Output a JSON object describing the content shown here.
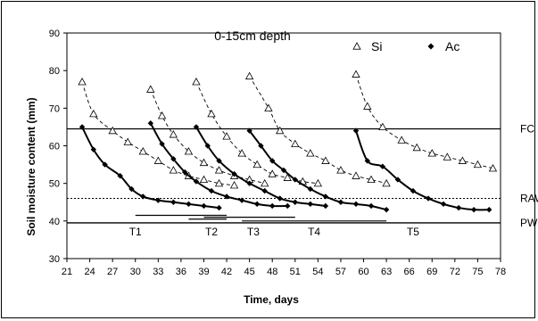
{
  "chart_data": {
    "type": "scatter",
    "title": "0-15cm depth",
    "xlabel": "Time, days",
    "ylabel": "Soil moisture content (mm)",
    "xlim": [
      21,
      78
    ],
    "ylim": [
      30,
      90
    ],
    "xticks": [
      21,
      24,
      27,
      30,
      33,
      36,
      39,
      42,
      45,
      48,
      51,
      54,
      57,
      60,
      63,
      66,
      69,
      72,
      75,
      78
    ],
    "yticks": [
      30,
      40,
      50,
      60,
      70,
      80,
      90
    ],
    "grid": false,
    "legend_position": "top-right",
    "legend": [
      {
        "name": "Si",
        "marker": "open-triangle"
      },
      {
        "name": "Ac",
        "marker": "filled-diamond"
      }
    ],
    "reference_lines": [
      {
        "label": "FC",
        "y": 64.5,
        "style": "solid"
      },
      {
        "label": "RAW",
        "y": 46,
        "style": "dotted"
      },
      {
        "label": "PWP",
        "y": 39.5,
        "style": "solid"
      }
    ],
    "irrigation_periods": [
      {
        "label": "T1",
        "label_x": 30,
        "x": [
          30,
          42
        ],
        "y": 41.5
      },
      {
        "label": "T2",
        "label_x": 40,
        "x": [
          37,
          42
        ],
        "y": 40.5
      },
      {
        "label": "T3",
        "label_x": 45.5,
        "x": [
          39,
          51
        ],
        "y": 41
      },
      {
        "label": "T4",
        "label_x": 53.5,
        "x": [
          44,
          57
        ],
        "y": 40
      },
      {
        "label": "T5",
        "label_x": 66.5,
        "x": [
          57,
          63
        ],
        "y": 40
      }
    ],
    "series": [
      {
        "name": "Si",
        "marker": "open-triangle",
        "line": "dashed",
        "segments": [
          [
            [
              23,
              77
            ],
            [
              24.5,
              68.5
            ],
            [
              27,
              64
            ],
            [
              29,
              61
            ],
            [
              31,
              58.5
            ],
            [
              33,
              56
            ],
            [
              35,
              53.5
            ],
            [
              37,
              52
            ],
            [
              39,
              51
            ],
            [
              41,
              50
            ],
            [
              43,
              49.5
            ]
          ],
          [
            [
              32,
              75
            ],
            [
              33.5,
              68
            ],
            [
              35,
              63
            ],
            [
              37,
              58.5
            ],
            [
              39,
              55.5
            ],
            [
              41,
              53.5
            ],
            [
              43,
              52
            ],
            [
              45,
              51
            ],
            [
              47,
              50
            ]
          ],
          [
            [
              38,
              77
            ],
            [
              40,
              68.5
            ],
            [
              42,
              62.5
            ],
            [
              44,
              58
            ],
            [
              46,
              55
            ],
            [
              48,
              52.5
            ],
            [
              50,
              51.5
            ],
            [
              52,
              50.5
            ],
            [
              54,
              50
            ]
          ],
          [
            [
              45,
              78.5
            ],
            [
              47.5,
              70
            ],
            [
              49,
              64
            ],
            [
              51,
              60.5
            ],
            [
              53,
              58
            ],
            [
              55,
              56
            ],
            [
              57,
              53.5
            ],
            [
              59,
              52
            ],
            [
              61,
              51
            ],
            [
              63,
              50
            ]
          ],
          [
            [
              59,
              79
            ],
            [
              60.5,
              70.5
            ],
            [
              62.5,
              65
            ],
            [
              65,
              61.5
            ],
            [
              67,
              59.5
            ],
            [
              69,
              58
            ],
            [
              71,
              57
            ],
            [
              73,
              56
            ],
            [
              75,
              55
            ],
            [
              77,
              54
            ]
          ]
        ]
      },
      {
        "name": "Ac",
        "marker": "filled-diamond",
        "line": "solid",
        "segments": [
          [
            [
              23,
              65
            ],
            [
              24.5,
              59
            ],
            [
              26,
              55
            ],
            [
              28,
              52
            ],
            [
              29.5,
              48.5
            ],
            [
              31,
              46.5
            ],
            [
              33,
              45.5
            ],
            [
              35,
              45
            ],
            [
              37,
              44.5
            ],
            [
              39,
              44
            ],
            [
              41,
              43.5
            ]
          ],
          [
            [
              32,
              66
            ],
            [
              33.5,
              60.5
            ],
            [
              35,
              56.5
            ],
            [
              36.5,
              53
            ],
            [
              38,
              50.5
            ],
            [
              40,
              48
            ],
            [
              42,
              46.5
            ],
            [
              44,
              45.5
            ],
            [
              46,
              44.5
            ],
            [
              48,
              44
            ],
            [
              50,
              44
            ]
          ],
          [
            [
              38,
              65
            ],
            [
              39.5,
              60
            ],
            [
              41,
              56
            ],
            [
              43,
              52.5
            ],
            [
              45,
              50
            ],
            [
              47,
              48
            ],
            [
              49,
              46
            ],
            [
              51,
              45
            ],
            [
              53,
              44.5
            ],
            [
              55,
              44
            ]
          ],
          [
            [
              45,
              64
            ],
            [
              46.5,
              60
            ],
            [
              48,
              56
            ],
            [
              49.5,
              53.5
            ],
            [
              51,
              51
            ],
            [
              53,
              48.5
            ],
            [
              55,
              46.5
            ],
            [
              57,
              45
            ],
            [
              59,
              44.5
            ],
            [
              61,
              44
            ],
            [
              63,
              43
            ]
          ],
          [
            [
              59,
              64
            ],
            [
              60.5,
              56
            ],
            [
              62.5,
              54.5
            ],
            [
              64.5,
              51
            ],
            [
              66.5,
              48
            ],
            [
              68.5,
              46
            ],
            [
              70.5,
              44.5
            ],
            [
              72.5,
              43.5
            ],
            [
              74.5,
              43
            ],
            [
              76.5,
              43
            ]
          ]
        ]
      }
    ]
  }
}
